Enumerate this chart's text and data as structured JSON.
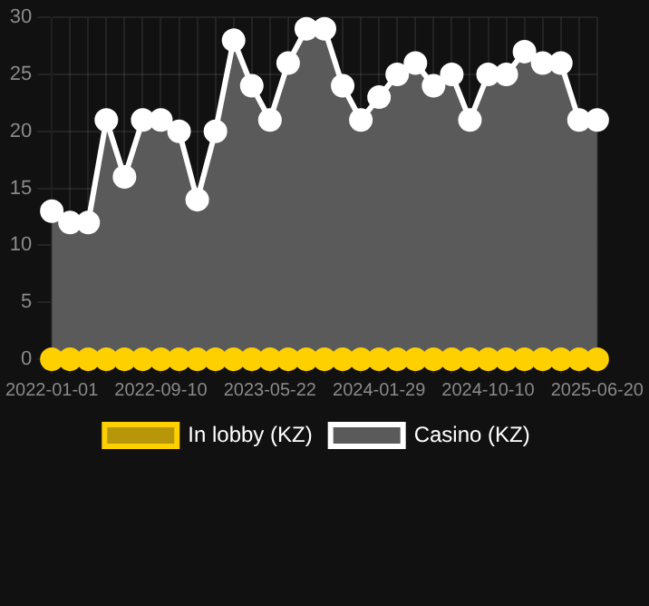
{
  "chart_data": {
    "type": "area",
    "categories": [
      "2022-01-01",
      null,
      null,
      null,
      null,
      null,
      "2022-09-10",
      null,
      null,
      null,
      null,
      null,
      "2023-05-22",
      null,
      null,
      null,
      null,
      null,
      "2024-01-29",
      null,
      null,
      null,
      null,
      null,
      "2024-10-10",
      null,
      null,
      null,
      null,
      null,
      "2025-06-20"
    ],
    "series": [
      {
        "name": "In lobby (KZ)",
        "type": "line",
        "color": "#ffd000",
        "values": [
          0,
          0,
          0,
          0,
          0,
          0,
          0,
          0,
          0,
          0,
          0,
          0,
          0,
          0,
          0,
          0,
          0,
          0,
          0,
          0,
          0,
          0,
          0,
          0,
          0,
          0,
          0,
          0,
          0,
          0,
          0
        ]
      },
      {
        "name": "Casino (KZ)",
        "color": "#ffffff",
        "values": [
          13,
          12,
          12,
          21,
          16,
          21,
          21,
          20,
          14,
          20,
          28,
          24,
          21,
          26,
          29,
          29,
          24,
          21,
          23,
          25,
          26,
          24,
          25,
          21,
          25,
          25,
          27,
          26,
          26,
          21,
          21
        ]
      }
    ],
    "ylim": [
      0,
      30
    ],
    "yticks": [
      0,
      5,
      10,
      15,
      20,
      25,
      30
    ],
    "grid": true,
    "legend": "bottom",
    "marker": "circle"
  }
}
